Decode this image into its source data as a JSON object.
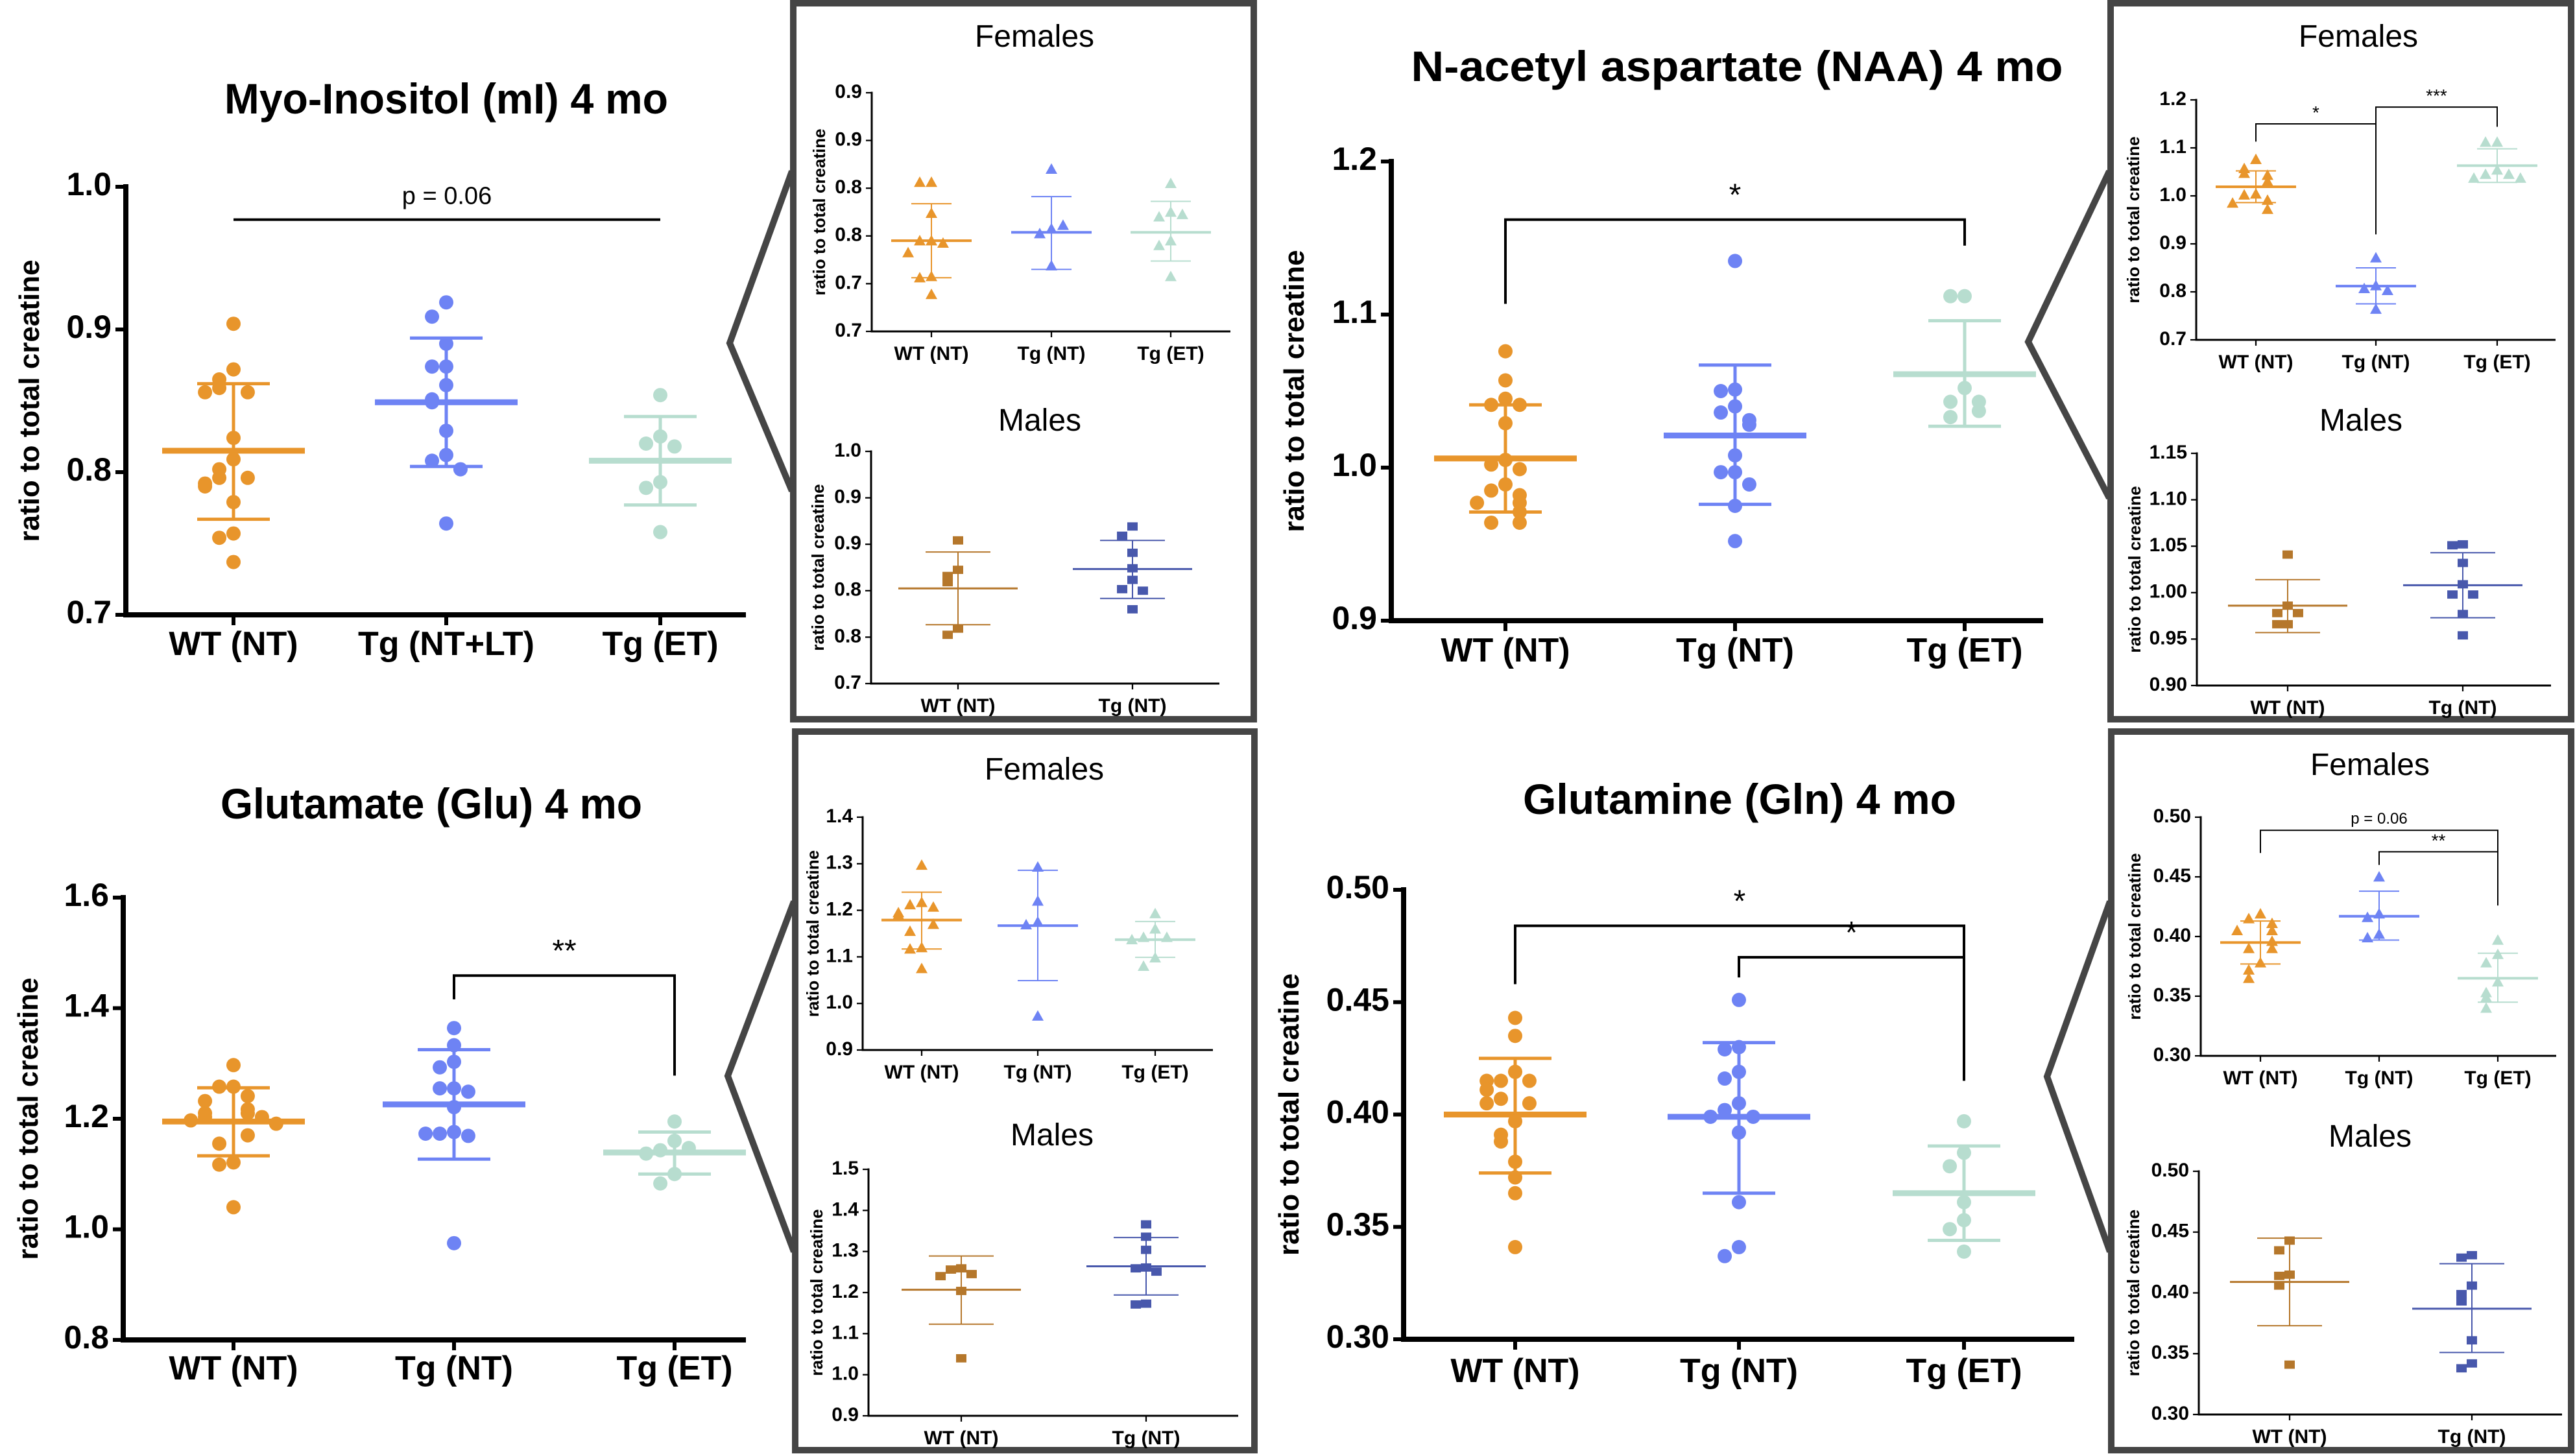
{
  "palette": {
    "group_colors": [
      "#E8952B",
      "#6E83F4",
      "#B7DDCF"
    ],
    "male_colors": [
      "#B5772B",
      "#4858AC"
    ],
    "frame": "#454545"
  },
  "chart_data": [
    {
      "type": "scatter",
      "title": "Myo-Inositol (mI) 4 mo",
      "ylabel": "ratio to total creatine",
      "categories": [
        "WT (NT)",
        "Tg (NT+LT)",
        "Tg (ET)"
      ],
      "ylim": [
        0.7,
        1.0
      ],
      "yticks": [
        0.7,
        0.8,
        0.9,
        1.0
      ],
      "ytick_labels": [
        "0.7",
        "0.8",
        "0.9",
        "1.0"
      ],
      "marker": "circle",
      "grid": false,
      "groups": [
        {
          "points": [
            0.904,
            0.872,
            0.865,
            0.859,
            0.856,
            0.856,
            0.824,
            0.809,
            0.802,
            0.796,
            0.796,
            0.792,
            0.79,
            0.779,
            0.757,
            0.754,
            0.737
          ],
          "mean": 0.815,
          "sd": [
            0.767,
            0.862
          ]
        },
        {
          "points": [
            0.919,
            0.909,
            0.89,
            0.874,
            0.874,
            0.861,
            0.851,
            0.849,
            0.829,
            0.812,
            0.808,
            0.802,
            0.764
          ],
          "mean": 0.849,
          "sd": [
            0.804,
            0.894
          ]
        },
        {
          "points": [
            0.854,
            0.825,
            0.82,
            0.818,
            0.793,
            0.789,
            0.758
          ],
          "mean": 0.808,
          "sd": [
            0.777,
            0.839
          ]
        }
      ],
      "brackets": [
        {
          "from": 0,
          "to": 2,
          "y": 0.977,
          "left_end": null,
          "right_end": null,
          "label": "p = 0.06"
        }
      ]
    },
    {
      "type": "scatter",
      "title": "Females",
      "ylabel": "ratio to total creatine",
      "categories": [
        "WT (NT)",
        "Tg (NT)",
        "Tg (ET)"
      ],
      "ylim": [
        0.7,
        0.9
      ],
      "yticks": [
        0.7,
        0.74,
        0.78,
        0.82,
        0.86,
        0.9
      ],
      "ytick_labels": [
        "0.7",
        "0.7",
        "0.8",
        "0.8",
        "0.9",
        "0.9"
      ],
      "marker": "triangle",
      "groups": [
        {
          "points": [
            0.825,
            0.825,
            0.799,
            0.776,
            0.776,
            0.774,
            0.766,
            0.746,
            0.745,
            0.731
          ],
          "mean": 0.776,
          "sd": [
            0.745,
            0.807
          ]
        },
        {
          "points": [
            0.836,
            0.786,
            0.782,
            0.789,
            0.755
          ],
          "mean": 0.783,
          "sd": [
            0.752,
            0.813
          ]
        },
        {
          "points": [
            0.824,
            0.8,
            0.796,
            0.798,
            0.776,
            0.772,
            0.746
          ],
          "mean": 0.783,
          "sd": [
            0.759,
            0.809
          ]
        }
      ],
      "brackets": []
    },
    {
      "type": "scatter",
      "title": "Males",
      "ylabel": "ratio to total creatine",
      "categories": [
        "WT (NT)",
        "Tg (NT)"
      ],
      "ylim": [
        0.7,
        1.0
      ],
      "yticks": [
        0.7,
        0.76,
        0.82,
        0.88,
        0.94,
        1.0
      ],
      "ytick_labels": [
        "0.7",
        "0.8",
        "0.8",
        "0.9",
        "0.9",
        "1.0"
      ],
      "marker": "square",
      "groups": [
        {
          "points": [
            0.885,
            0.847,
            0.839,
            0.831,
            0.771,
            0.763
          ],
          "mean": 0.823,
          "sd": [
            0.776,
            0.87
          ]
        },
        {
          "points": [
            0.903,
            0.891,
            0.869,
            0.849,
            0.834,
            0.822,
            0.82,
            0.796
          ],
          "mean": 0.848,
          "sd": [
            0.81,
            0.885
          ]
        }
      ],
      "brackets": []
    },
    {
      "type": "scatter",
      "title": "N-acetyl aspartate (NAA) 4 mo",
      "ylabel": "ratio to total creatine",
      "categories": [
        "WT (NT)",
        "Tg (NT)",
        "Tg (ET)"
      ],
      "ylim": [
        0.9,
        1.2
      ],
      "yticks": [
        0.9,
        1.0,
        1.1,
        1.2
      ],
      "ytick_labels": [
        "0.9",
        "1.0",
        "1.1",
        "1.2"
      ],
      "marker": "circle",
      "groups": [
        {
          "points": [
            1.076,
            1.057,
            1.045,
            1.041,
            1.041,
            1.029,
            1.005,
            1.002,
            0.999,
            0.989,
            0.985,
            0.982,
            0.977,
            0.977,
            0.971,
            0.964,
            0.964
          ],
          "mean": 1.006,
          "sd": [
            0.971,
            1.041
          ]
        },
        {
          "points": [
            1.135,
            1.051,
            1.05,
            1.04,
            1.036,
            1.031,
            1.028,
            1.008,
            0.997,
            0.997,
            0.989,
            0.975,
            0.952
          ],
          "mean": 1.021,
          "sd": [
            0.976,
            1.067
          ]
        },
        {
          "points": [
            1.112,
            1.112,
            1.052,
            1.043,
            1.043,
            1.037,
            1.033
          ],
          "mean": 1.061,
          "sd": [
            1.027,
            1.096
          ]
        }
      ],
      "brackets": [
        {
          "from": 0,
          "to": 2,
          "y": 1.162,
          "left_end": 1.107,
          "right_end": 1.145,
          "label": "*"
        }
      ]
    },
    {
      "type": "scatter",
      "title": "Females",
      "ylabel": "ratio to total creatine",
      "categories": [
        "WT (NT)",
        "Tg (NT)",
        "Tg (ET)"
      ],
      "ylim": [
        0.7,
        1.2
      ],
      "yticks": [
        0.7,
        0.8,
        0.9,
        1.0,
        1.1,
        1.2
      ],
      "ytick_labels": [
        "0.7",
        "0.8",
        "0.9",
        "1.0",
        "1.1",
        "1.2"
      ],
      "marker": "triangle",
      "groups": [
        {
          "points": [
            1.076,
            1.057,
            1.047,
            1.043,
            1.03,
            1.004,
            1.002,
            0.991,
            0.985,
            0.972
          ],
          "mean": 1.019,
          "sd": [
            0.986,
            1.052
          ]
        },
        {
          "points": [
            0.871,
            0.813,
            0.807,
            0.803,
            0.764
          ],
          "mean": 0.812,
          "sd": [
            0.775,
            0.85
          ]
        },
        {
          "points": [
            1.112,
            1.112,
            1.054,
            1.045,
            1.045,
            1.037,
            1.037
          ],
          "mean": 1.063,
          "sd": [
            1.028,
            1.098
          ]
        }
      ],
      "brackets": [
        {
          "from": 0,
          "to": 1,
          "y": 1.15,
          "left_end": 1.113,
          "right_end": 0.92,
          "label": "*"
        },
        {
          "from": 1,
          "to": 2,
          "y": 1.185,
          "left_end": 0.92,
          "right_end": 1.144,
          "label": "***"
        }
      ]
    },
    {
      "type": "scatter",
      "title": "Males",
      "ylabel": "ratio to total creatine",
      "categories": [
        "WT (NT)",
        "Tg (NT)"
      ],
      "ylim": [
        0.9,
        1.15
      ],
      "yticks": [
        0.9,
        0.95,
        1.0,
        1.05,
        1.1,
        1.15
      ],
      "ytick_labels": [
        "0.90",
        "0.95",
        "1.00",
        "1.05",
        "1.10",
        "1.15"
      ],
      "marker": "square",
      "groups": [
        {
          "points": [
            1.041,
            0.986,
            0.978,
            0.978,
            0.966,
            0.966
          ],
          "mean": 0.986,
          "sd": [
            0.957,
            1.014
          ]
        },
        {
          "points": [
            1.052,
            1.051,
            1.032,
            1.009,
            0.998,
            0.998,
            0.977,
            0.954
          ],
          "mean": 1.008,
          "sd": [
            0.973,
            1.043
          ]
        }
      ],
      "brackets": []
    },
    {
      "type": "scatter",
      "title": "Glutamate (Glu) 4 mo",
      "ylabel": "ratio to total creatine",
      "categories": [
        "WT (NT)",
        "Tg (NT)",
        "Tg (ET)"
      ],
      "ylim": [
        0.8,
        1.6
      ],
      "yticks": [
        0.8,
        1.0,
        1.2,
        1.4,
        1.6
      ],
      "ytick_labels": [
        "0.8",
        "1.0",
        "1.2",
        "1.4",
        "1.6"
      ],
      "marker": "circle",
      "groups": [
        {
          "points": [
            1.297,
            1.258,
            1.258,
            1.241,
            1.232,
            1.217,
            1.21,
            1.21,
            1.203,
            1.203,
            1.197,
            1.191,
            1.17,
            1.155,
            1.121,
            1.117,
            1.04
          ],
          "mean": 1.195,
          "sd": [
            1.133,
            1.256
          ]
        },
        {
          "points": [
            1.364,
            1.333,
            1.303,
            1.293,
            1.255,
            1.255,
            1.249,
            1.221,
            1.176,
            1.173,
            1.169,
            1.173,
            0.975
          ],
          "mean": 1.226,
          "sd": [
            1.127,
            1.325
          ]
        },
        {
          "points": [
            1.195,
            1.16,
            1.143,
            1.147,
            1.137,
            1.1,
            1.083
          ],
          "mean": 1.139,
          "sd": [
            1.1,
            1.176
          ]
        }
      ],
      "brackets": [
        {
          "from": 1,
          "to": 2,
          "y": 1.459,
          "left_end": 1.416,
          "right_end": 1.278,
          "label": "**"
        }
      ]
    },
    {
      "type": "scatter",
      "title": "Females",
      "ylabel": "ratio to total creatine",
      "categories": [
        "WT (NT)",
        "Tg (NT)",
        "Tg (ET)"
      ],
      "ylim": [
        0.9,
        1.4
      ],
      "yticks": [
        0.9,
        1.0,
        1.1,
        1.2,
        1.3,
        1.4
      ],
      "ytick_labels": [
        "0.9",
        "1.0",
        "1.1",
        "1.2",
        "1.3",
        "1.4"
      ],
      "marker": "triangle",
      "groups": [
        {
          "points": [
            1.297,
            1.217,
            1.212,
            1.207,
            1.195,
            1.19,
            1.17,
            1.155,
            1.12,
            1.117,
            1.075
          ],
          "mean": 1.179,
          "sd": [
            1.117,
            1.239
          ]
        },
        {
          "points": [
            1.293,
            1.22,
            1.175,
            1.169,
            0.973
          ],
          "mean": 1.167,
          "sd": [
            1.049,
            1.286
          ]
        },
        {
          "points": [
            1.193,
            1.16,
            1.142,
            1.142,
            1.137,
            1.098,
            1.08
          ],
          "mean": 1.137,
          "sd": [
            1.099,
            1.176
          ]
        }
      ],
      "brackets": []
    },
    {
      "type": "scatter",
      "title": "Males",
      "ylabel": "ratio to total creatine",
      "categories": [
        "WT (NT)",
        "Tg (NT)"
      ],
      "ylim": [
        0.9,
        1.5
      ],
      "yticks": [
        0.9,
        1.0,
        1.1,
        1.2,
        1.3,
        1.4,
        1.5
      ],
      "ytick_labels": [
        "0.9",
        "1.0",
        "1.1",
        "1.2",
        "1.3",
        "1.4",
        "1.5"
      ],
      "marker": "square",
      "groups": [
        {
          "points": [
            1.259,
            1.256,
            1.245,
            1.24,
            1.204,
            1.04
          ],
          "mean": 1.207,
          "sd": [
            1.123,
            1.289
          ]
        },
        {
          "points": [
            1.366,
            1.336,
            1.304,
            1.261,
            1.259,
            1.251,
            1.173,
            1.171
          ],
          "mean": 1.264,
          "sd": [
            1.194,
            1.334
          ]
        }
      ],
      "brackets": []
    },
    {
      "type": "scatter",
      "title": "Glutamine (Gln) 4 mo",
      "ylabel": "ratio to total creatine",
      "categories": [
        "WT (NT)",
        "Tg (NT)",
        "Tg (ET)"
      ],
      "ylim": [
        0.3,
        0.5
      ],
      "yticks": [
        0.3,
        0.35,
        0.4,
        0.45,
        0.5
      ],
      "ytick_labels": [
        "0.30",
        "0.35",
        "0.40",
        "0.45",
        "0.50"
      ],
      "marker": "circle",
      "groups": [
        {
          "points": [
            0.443,
            0.435,
            0.419,
            0.415,
            0.415,
            0.415,
            0.411,
            0.407,
            0.405,
            0.405,
            0.397,
            0.391,
            0.388,
            0.379,
            0.372,
            0.365,
            0.341
          ],
          "mean": 0.4,
          "sd": [
            0.374,
            0.425
          ]
        },
        {
          "points": [
            0.451,
            0.43,
            0.429,
            0.419,
            0.416,
            0.405,
            0.402,
            0.399,
            0.399,
            0.392,
            0.361,
            0.341,
            0.337
          ],
          "mean": 0.399,
          "sd": [
            0.365,
            0.432
          ]
        },
        {
          "points": [
            0.397,
            0.383,
            0.377,
            0.361,
            0.353,
            0.349,
            0.339
          ],
          "mean": 0.365,
          "sd": [
            0.344,
            0.386
          ]
        }
      ],
      "brackets": [
        {
          "from": 0,
          "to": 2,
          "y": 0.484,
          "left_end": 0.458,
          "right_end": 0.415,
          "label": "*"
        },
        {
          "from": 1,
          "to": 2,
          "y": 0.47,
          "left_end": 0.461,
          "right_end": 0.415,
          "label": "*"
        }
      ]
    },
    {
      "type": "scatter",
      "title": "Females",
      "ylabel": "ratio to total creatine",
      "categories": [
        "WT (NT)",
        "Tg (NT)",
        "Tg (ET)"
      ],
      "ylim": [
        0.3,
        0.5
      ],
      "yticks": [
        0.3,
        0.35,
        0.4,
        0.45,
        0.5
      ],
      "ytick_labels": [
        "0.30",
        "0.35",
        "0.40",
        "0.45",
        "0.50"
      ],
      "marker": "triangle",
      "groups": [
        {
          "points": [
            0.419,
            0.415,
            0.411,
            0.405,
            0.405,
            0.396,
            0.39,
            0.39,
            0.378,
            0.372,
            0.365
          ],
          "mean": 0.395,
          "sd": [
            0.377,
            0.413
          ]
        },
        {
          "points": [
            0.45,
            0.419,
            0.416,
            0.402,
            0.399
          ],
          "mean": 0.417,
          "sd": [
            0.397,
            0.438
          ]
        },
        {
          "points": [
            0.397,
            0.385,
            0.378,
            0.362,
            0.353,
            0.349,
            0.34
          ],
          "mean": 0.365,
          "sd": [
            0.345,
            0.386
          ]
        }
      ],
      "brackets": [
        {
          "from": 0,
          "to": 2,
          "y": 0.489,
          "left_end": 0.47,
          "right_end": 0.426,
          "label": "p = 0.06"
        },
        {
          "from": 1,
          "to": 2,
          "y": 0.471,
          "left_end": 0.46,
          "right_end": 0.426,
          "label": "**"
        }
      ]
    },
    {
      "type": "scatter",
      "title": "Males",
      "ylabel": "ratio to total creatine",
      "categories": [
        "WT (NT)",
        "Tg (NT)"
      ],
      "ylim": [
        0.3,
        0.5
      ],
      "yticks": [
        0.3,
        0.35,
        0.4,
        0.45,
        0.5
      ],
      "ytick_labels": [
        "0.30",
        "0.35",
        "0.40",
        "0.45",
        "0.50"
      ],
      "marker": "square",
      "groups": [
        {
          "points": [
            0.443,
            0.435,
            0.415,
            0.414,
            0.406,
            0.341
          ],
          "mean": 0.409,
          "sd": [
            0.373,
            0.445
          ]
        },
        {
          "points": [
            0.431,
            0.429,
            0.406,
            0.399,
            0.393,
            0.361,
            0.342,
            0.338
          ],
          "mean": 0.387,
          "sd": [
            0.351,
            0.424
          ]
        }
      ],
      "brackets": []
    }
  ]
}
